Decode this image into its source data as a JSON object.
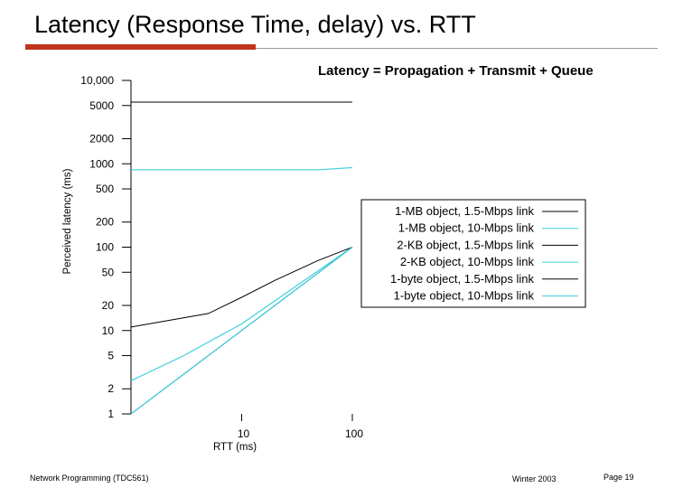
{
  "slide": {
    "title": "Latency (Response Time, delay) vs. RTT",
    "formula": "Latency = Propagation + Transmit + Queue"
  },
  "footer": {
    "left": "Network Programming (TDC561)",
    "middle": "Winter 2003",
    "right": "Page 19"
  },
  "colors": {
    "accent": "#c0341d",
    "cyan": "#3fd0e0",
    "black": "#000000"
  },
  "chart_data": {
    "type": "line",
    "xscale": "log",
    "yscale": "log",
    "xlabel": "RTT (ms)",
    "ylabel": "Perceived latency (ms)",
    "xlim": [
      1,
      100
    ],
    "ylim": [
      1,
      10000
    ],
    "x_ticks": [
      {
        "value": 10,
        "label": "10"
      },
      {
        "value": 100,
        "label": "100"
      }
    ],
    "y_ticks": [
      {
        "value": 10000,
        "label": "10,000"
      },
      {
        "value": 5000,
        "label": "5000"
      },
      {
        "value": 2000,
        "label": "2000"
      },
      {
        "value": 1000,
        "label": "1000"
      },
      {
        "value": 500,
        "label": "500"
      },
      {
        "value": 200,
        "label": "200"
      },
      {
        "value": 100,
        "label": "100"
      },
      {
        "value": 50,
        "label": "50"
      },
      {
        "value": 20,
        "label": "20"
      },
      {
        "value": 10,
        "label": "10"
      },
      {
        "value": 5,
        "label": "5"
      },
      {
        "value": 2,
        "label": "2"
      },
      {
        "value": 1,
        "label": "1"
      }
    ],
    "legend_position": "right",
    "series": [
      {
        "name": "1-MB object, 1.5-Mbps link",
        "color": "#000000",
        "points": [
          [
            1,
            5500
          ],
          [
            100,
            5500
          ]
        ]
      },
      {
        "name": "1-MB object, 10-Mbps link",
        "color": "#3fd0e0",
        "points": [
          [
            1,
            850
          ],
          [
            50,
            850
          ],
          [
            100,
            900
          ]
        ]
      },
      {
        "name": "2-KB object, 1.5-Mbps link",
        "color": "#000000",
        "points": [
          [
            1,
            11
          ],
          [
            5,
            16
          ],
          [
            10,
            25
          ],
          [
            20,
            40
          ],
          [
            50,
            70
          ],
          [
            100,
            100
          ]
        ]
      },
      {
        "name": "2-KB object, 10-Mbps link",
        "color": "#3fd0e0",
        "points": [
          [
            1,
            2.5
          ],
          [
            3,
            5
          ],
          [
            10,
            12
          ],
          [
            30,
            33
          ],
          [
            100,
            100
          ]
        ]
      },
      {
        "name": "1-byte object, 1.5-Mbps link",
        "color": "#000000",
        "points": [
          [
            1,
            1
          ],
          [
            100,
            100
          ]
        ]
      },
      {
        "name": "1-byte object, 10-Mbps link",
        "color": "#3fd0e0",
        "points": [
          [
            1,
            1
          ],
          [
            100,
            100
          ]
        ]
      }
    ]
  }
}
